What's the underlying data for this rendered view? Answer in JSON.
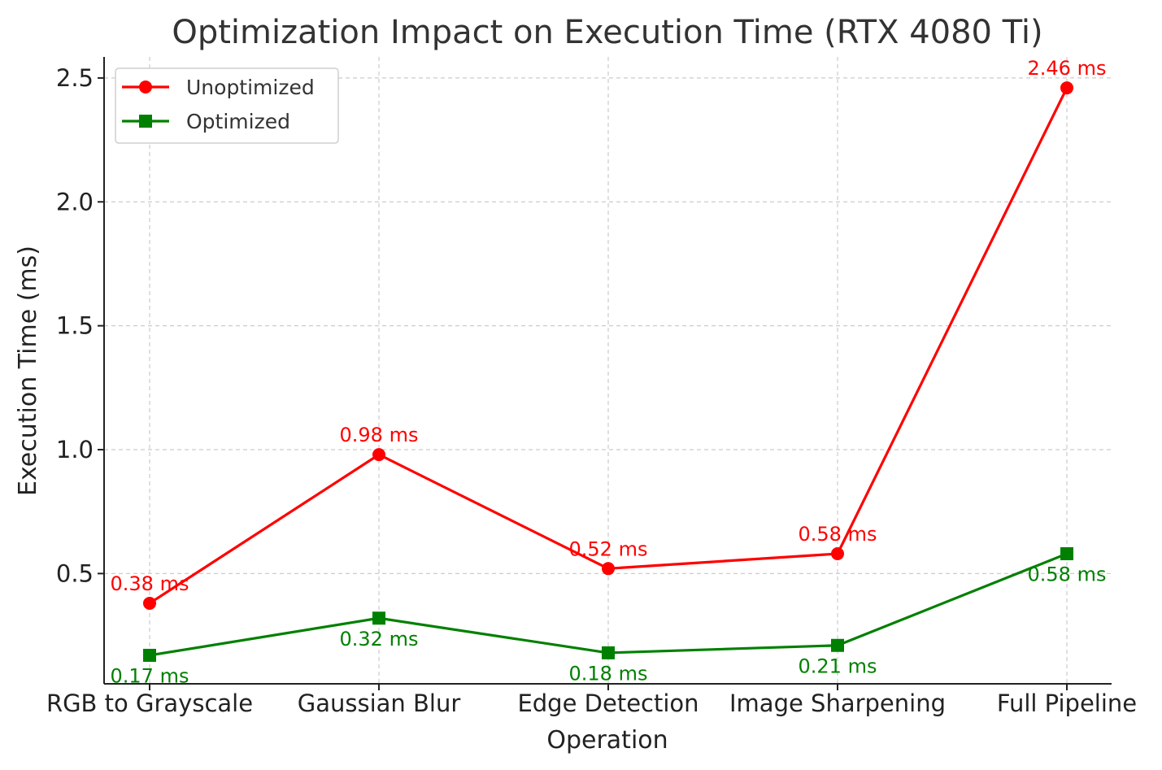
{
  "chart_data": {
    "type": "line",
    "title": "Optimization Impact on Execution Time (RTX 4080 Ti)",
    "xlabel": "Operation",
    "ylabel": "Execution Time (ms)",
    "categories": [
      "RGB to Grayscale",
      "Gaussian Blur",
      "Edge Detection",
      "Image Sharpening",
      "Full Pipeline"
    ],
    "series": [
      {
        "name": "Unoptimized",
        "color": "#ff0000",
        "marker": "circle",
        "values": [
          0.38,
          0.98,
          0.52,
          0.58,
          2.46
        ],
        "labels": [
          "0.38 ms",
          "0.98 ms",
          "0.52 ms",
          "0.58 ms",
          "2.46 ms"
        ]
      },
      {
        "name": "Optimized",
        "color": "#008000",
        "marker": "square",
        "values": [
          0.17,
          0.32,
          0.18,
          0.21,
          0.58
        ],
        "labels": [
          "0.17 ms",
          "0.32 ms",
          "0.18 ms",
          "0.21 ms",
          "0.58 ms"
        ]
      }
    ],
    "yticks": [
      "0.5",
      "1.0",
      "1.5",
      "2.0",
      "2.5"
    ],
    "ylim": [
      0.055,
      2.585
    ],
    "grid": true,
    "legend_position": "top-left"
  }
}
